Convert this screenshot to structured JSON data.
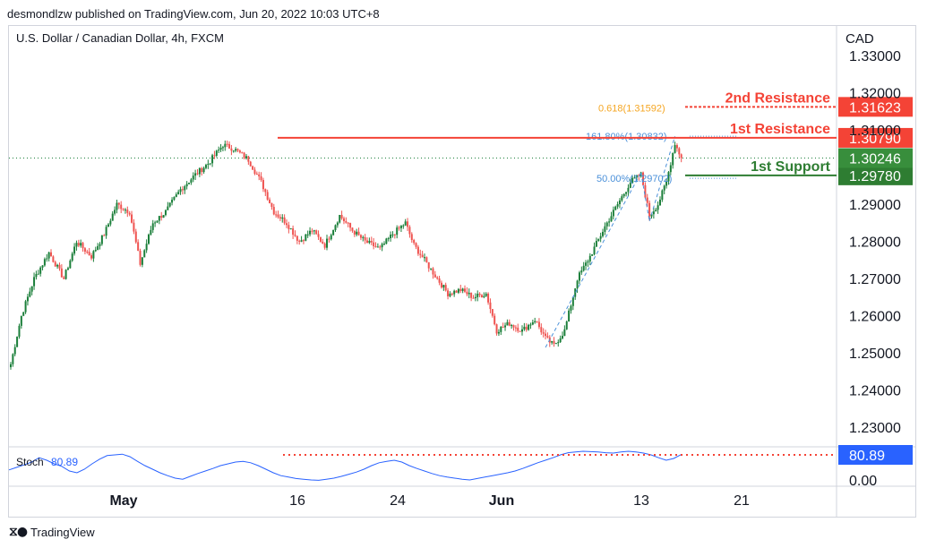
{
  "header": {
    "published": "desmondlzw published on TradingView.com, Jun 20, 2022 10:03 UTC+8"
  },
  "footer": {
    "brand": "TradingView",
    "logo_icon": "tradingview-logo-icon"
  },
  "colors": {
    "bull": "#26a69a",
    "bull_dark": "#1b7f3a",
    "bear": "#ef5350",
    "resistance": "#f44336",
    "support": "#2e7d32",
    "fib_blue": "#4a90d9",
    "fib_orange": "#f5a623",
    "stoch_line": "#2962ff",
    "last_price": "#388e3c"
  },
  "chart_data": {
    "type": "candlestick",
    "symbol_title": "U.S. Dollar / Canadian Dollar, 4h, FXCM",
    "currency": "CAD",
    "y_axis": {
      "ticks": [
        "1.33000",
        "1.32000",
        "1.31000",
        "1.29000",
        "1.28000",
        "1.27000",
        "1.26000",
        "1.25000",
        "1.24000",
        "1.23000"
      ],
      "tick_values": [
        1.33,
        1.32,
        1.31,
        1.29,
        1.28,
        1.27,
        1.26,
        1.25,
        1.24,
        1.23
      ],
      "range": [
        1.225,
        1.338
      ]
    },
    "x_axis": {
      "ticks": [
        "May",
        "16",
        "24",
        "Jun",
        "13",
        "21"
      ],
      "bold_ticks": [
        "May",
        "Jun"
      ]
    },
    "price_path": [
      [
        0,
        1.247
      ],
      [
        5,
        1.26
      ],
      [
        11,
        1.27
      ],
      [
        18,
        1.277
      ],
      [
        25,
        1.27
      ],
      [
        31,
        1.28
      ],
      [
        38,
        1.276
      ],
      [
        44,
        1.282
      ],
      [
        50,
        1.29
      ],
      [
        56,
        1.288
      ],
      [
        61,
        1.274
      ],
      [
        67,
        1.285
      ],
      [
        73,
        1.288
      ],
      [
        80,
        1.294
      ],
      [
        87,
        1.298
      ],
      [
        93,
        1.301
      ],
      [
        100,
        1.306
      ],
      [
        105,
        1.305
      ],
      [
        112,
        1.302
      ],
      [
        118,
        1.296
      ],
      [
        124,
        1.288
      ],
      [
        130,
        1.285
      ],
      [
        136,
        1.28
      ],
      [
        142,
        1.283
      ],
      [
        148,
        1.279
      ],
      [
        155,
        1.287
      ],
      [
        161,
        1.283
      ],
      [
        167,
        1.28
      ],
      [
        174,
        1.278
      ],
      [
        180,
        1.282
      ],
      [
        186,
        1.285
      ],
      [
        190,
        1.279
      ],
      [
        195,
        1.275
      ],
      [
        201,
        1.27
      ],
      [
        206,
        1.266
      ],
      [
        212,
        1.267
      ],
      [
        218,
        1.265
      ],
      [
        224,
        1.266
      ],
      [
        229,
        1.256
      ],
      [
        235,
        1.258
      ],
      [
        241,
        1.256
      ],
      [
        247,
        1.259
      ],
      [
        252,
        1.254
      ],
      [
        256,
        1.252
      ],
      [
        261,
        1.256
      ],
      [
        267,
        1.27
      ],
      [
        273,
        1.276
      ],
      [
        280,
        1.284
      ],
      [
        286,
        1.29
      ],
      [
        292,
        1.296
      ],
      [
        297,
        1.298
      ],
      [
        301,
        1.287
      ],
      [
        305,
        1.29
      ],
      [
        309,
        1.296
      ],
      [
        313,
        1.3065
      ],
      [
        316,
        1.3024
      ]
    ],
    "total_bars": 317,
    "last_price": "1.30246",
    "levels": [
      {
        "name": "2nd Resistance",
        "label": "2nd Resistance",
        "value": 1.31623,
        "value_text": "1.31623",
        "style": "dashed",
        "kind": "resistance"
      },
      {
        "name": "1st Resistance",
        "label": "1st Resistance",
        "value": 1.3079,
        "value_text": "1.30790",
        "style": "solid",
        "kind": "resistance"
      },
      {
        "name": "1st Support",
        "label": "1st Support",
        "value": 1.2978,
        "value_text": "1.29780",
        "style": "solid",
        "kind": "support"
      }
    ],
    "fib_labels": [
      {
        "text": "0.618(1.31592)",
        "value": 1.31592,
        "color": "orange"
      },
      {
        "text": "161.80%(1.30832)",
        "value": 1.30832,
        "color": "blue"
      },
      {
        "text": "50.00%(1.29702)",
        "value": 1.29702,
        "color": "blue"
      }
    ],
    "stochastic": {
      "label": "Stoch",
      "value_text": "80.89",
      "axis_label": "0.00",
      "level": 80,
      "values": [
        38,
        45,
        52,
        60,
        72,
        65,
        55,
        48,
        35,
        30,
        40,
        55,
        68,
        78,
        80,
        82,
        75,
        62,
        50,
        40,
        30,
        22,
        15,
        12,
        20,
        28,
        35,
        42,
        50,
        55,
        60,
        62,
        58,
        50,
        40,
        30,
        22,
        18,
        14,
        12,
        10,
        9,
        12,
        15,
        20,
        26,
        32,
        40,
        50,
        58,
        62,
        65,
        60,
        50,
        42,
        35,
        28,
        22,
        18,
        15,
        12,
        10,
        14,
        18,
        22,
        26,
        30,
        35,
        42,
        50,
        58,
        65,
        72,
        80,
        86,
        88,
        90,
        89,
        88,
        86,
        85,
        88,
        90,
        88,
        85,
        80,
        72,
        65,
        70,
        80.89
      ]
    }
  }
}
